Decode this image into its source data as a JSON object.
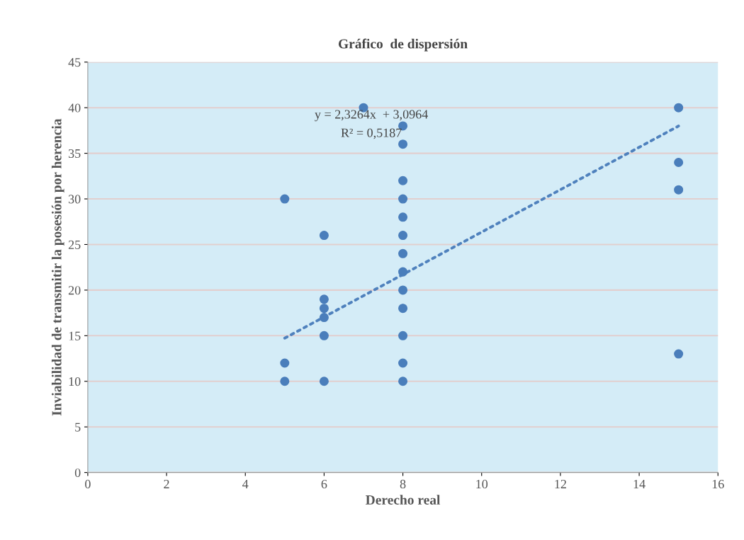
{
  "chart_data": {
    "type": "scatter",
    "title": "Gráfico  de dispersión",
    "xlabel": "Derecho real",
    "ylabel": "Inviabilidad de transmitir la posesión por herencia",
    "xlim": [
      0,
      16
    ],
    "xticks": [
      0,
      2,
      4,
      6,
      8,
      10,
      12,
      14,
      16
    ],
    "ylim": [
      0,
      45
    ],
    "yticks": [
      0,
      5,
      10,
      15,
      20,
      25,
      30,
      35,
      40,
      45
    ],
    "grid": "y",
    "legend": false,
    "series": [
      {
        "color": "#4a7ebb",
        "marker": "circle",
        "x": [
          5,
          5,
          5,
          6,
          6,
          6,
          6,
          6,
          6,
          7,
          8,
          8,
          8,
          8,
          8,
          8,
          8,
          8,
          8,
          8,
          8,
          8,
          8,
          15,
          15,
          15,
          15
        ],
        "values": [
          30,
          12,
          10,
          26,
          19,
          18,
          17,
          15,
          10,
          40,
          38,
          36,
          32,
          30,
          28,
          26,
          24,
          22,
          20,
          18,
          15,
          12,
          10,
          40,
          34,
          31,
          13
        ]
      },
      {
        "type": "line",
        "color": "#4f81bd",
        "line_style": "dotted",
        "marker": "none",
        "x": [
          5,
          15
        ],
        "values": [
          14.73,
          37.99
        ]
      }
    ],
    "annotations": [
      "y = 2,3264x  + 3,0964",
      "R² = 0,5187"
    ]
  }
}
